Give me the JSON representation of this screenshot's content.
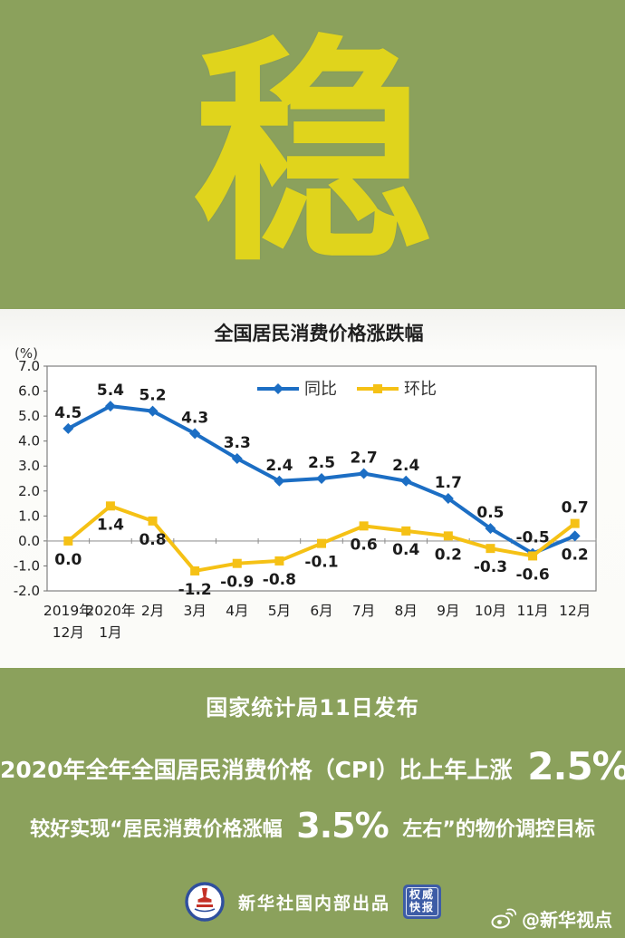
{
  "page": {
    "background_color": "#8BA15C",
    "panel_color": "#FBFBF8"
  },
  "hero": {
    "character": "稳",
    "color": "#E0D41C"
  },
  "chart_data": {
    "type": "line",
    "title": "全国居民消费价格涨跌幅",
    "unit_label": "(%)",
    "categories": [
      [
        "2019年",
        "12月"
      ],
      [
        "2020年",
        "1月"
      ],
      "2月",
      "3月",
      "4月",
      "5月",
      "6月",
      "7月",
      "8月",
      "9月",
      "10月",
      "11月",
      "12月"
    ],
    "series": [
      {
        "name": "同比",
        "color": "#1C6EC4",
        "marker": "diamond",
        "values": [
          4.5,
          5.4,
          5.2,
          4.3,
          3.3,
          2.4,
          2.5,
          2.7,
          2.4,
          1.7,
          0.5,
          -0.5,
          0.2
        ],
        "label_side": [
          "above",
          "above",
          "above",
          "above",
          "above",
          "above",
          "above",
          "above",
          "above",
          "above",
          "above",
          "above",
          "below"
        ]
      },
      {
        "name": "环比",
        "color": "#F5C115",
        "marker": "square",
        "values": [
          0.0,
          1.4,
          0.8,
          -1.2,
          -0.9,
          -0.8,
          -0.1,
          0.6,
          0.4,
          0.2,
          -0.3,
          -0.6,
          0.7
        ],
        "label_side": [
          "below",
          "below",
          "below",
          "below",
          "below",
          "below",
          "below",
          "below",
          "below",
          "below",
          "below",
          "below",
          "above"
        ]
      }
    ],
    "ylim": [
      -2.0,
      7.0
    ],
    "ytick_step": 1.0,
    "yticks": [
      "7.0",
      "6.0",
      "5.0",
      "4.0",
      "3.0",
      "2.0",
      "1.0",
      "0.0",
      "-1.0",
      "-2.0"
    ],
    "grid": false,
    "legend_position": "top-center",
    "axis_color": "#808080",
    "zero_line_color": "#ABABAB",
    "label_color": "#1B1B1B"
  },
  "announcement": {
    "source_line": "国家统计局11日发布"
  },
  "headline": {
    "line1_prefix": "2020年全年全国居民消费价格（CPI）比上年上涨",
    "line1_value": "2.5%",
    "line2_part1": "较好实现“居民消费价格涨幅",
    "line2_value": "3.5%",
    "line2_part2": "左右”的物价调控目标"
  },
  "footer": {
    "producer": "新华社国内部出品",
    "badge_line1": "权威",
    "badge_line2": "快报",
    "weibo_handle": "@新华视点"
  }
}
